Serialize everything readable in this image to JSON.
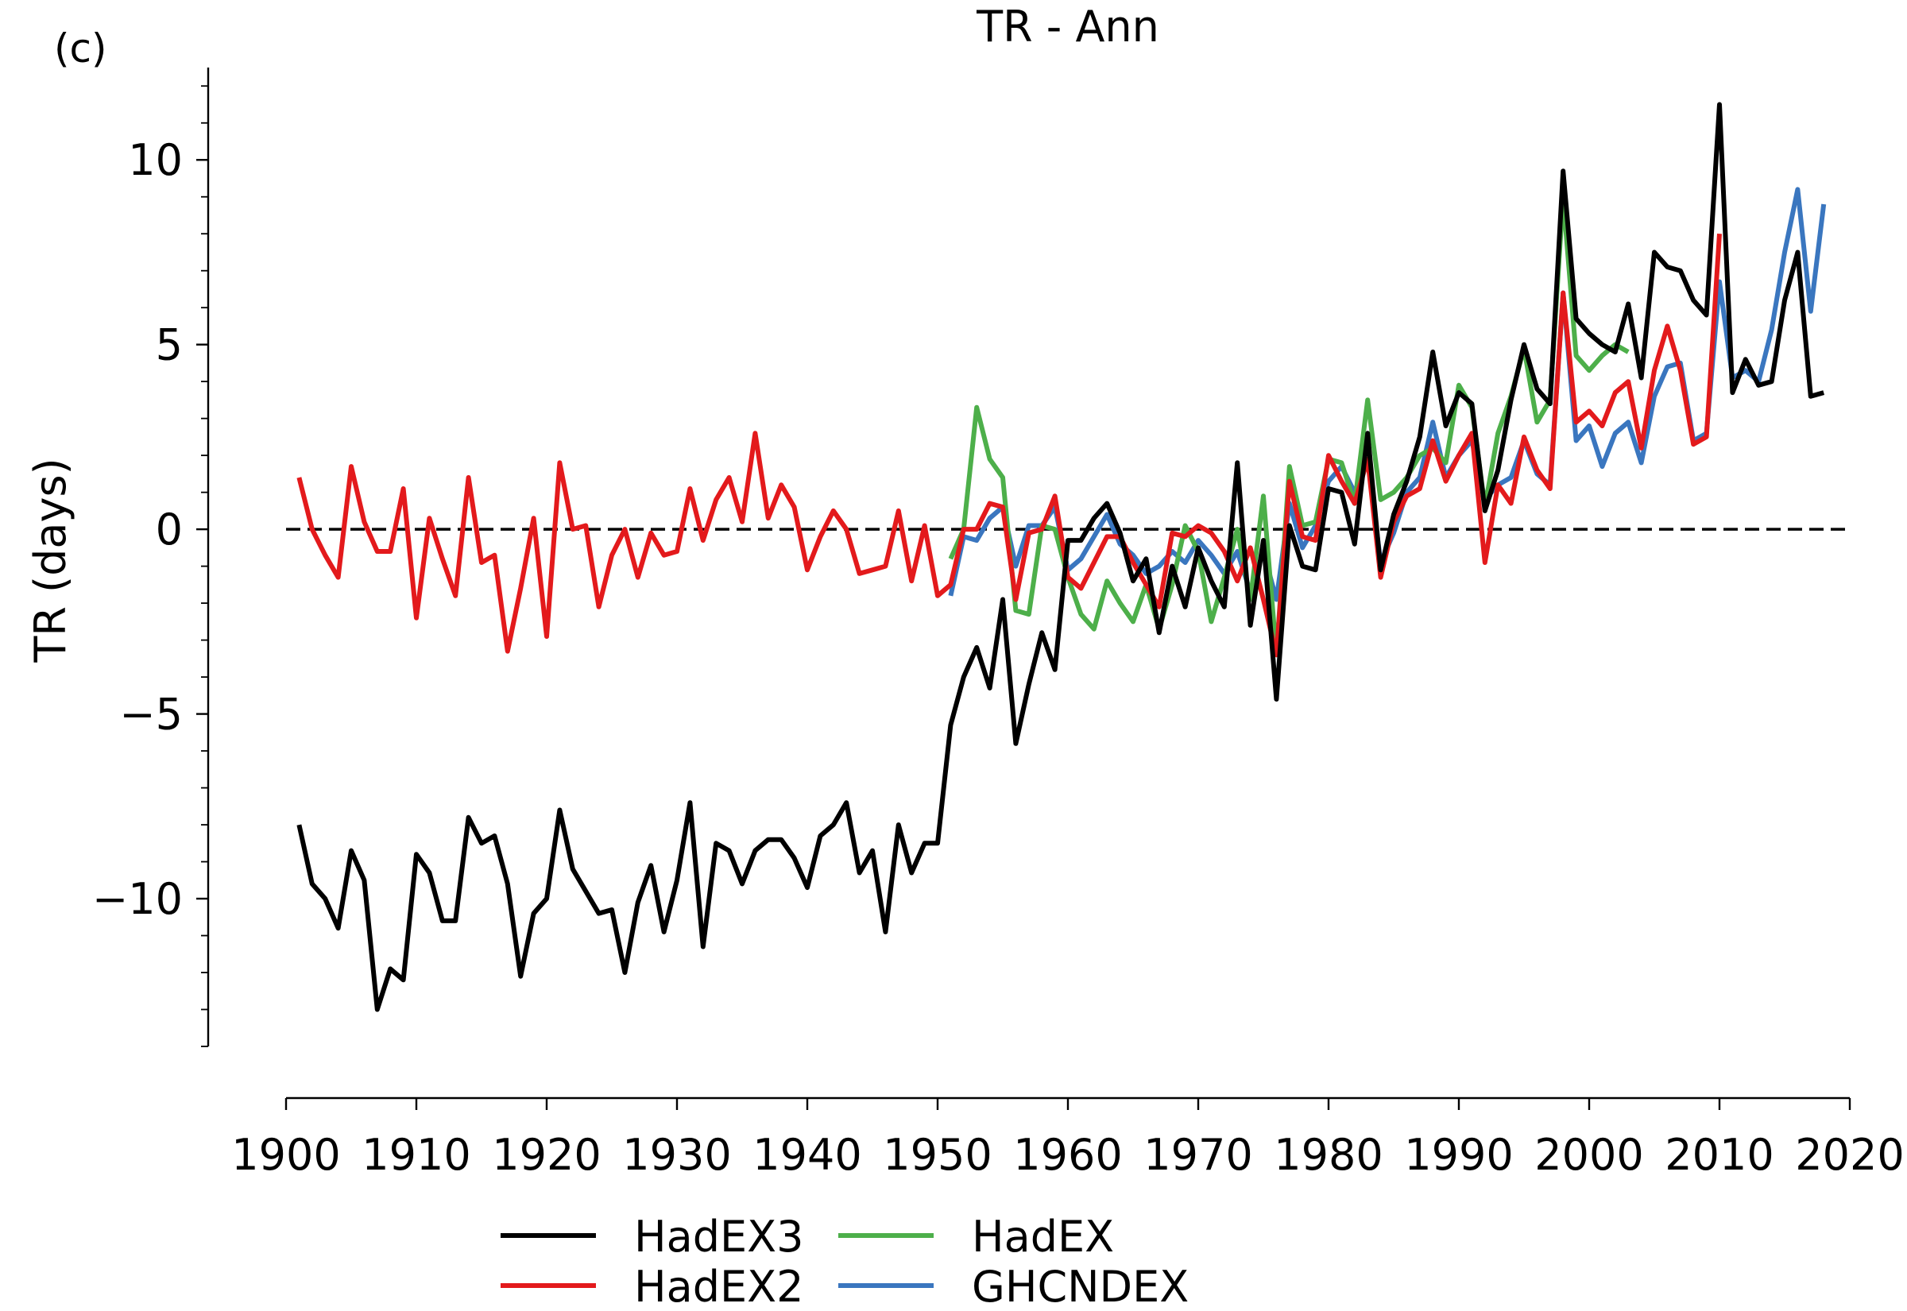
{
  "panel_label": "(c)",
  "chart_data": {
    "type": "line",
    "title": "TR - Ann",
    "xlabel": "",
    "ylabel": "TR (days)",
    "xlim": [
      1900,
      2020
    ],
    "ylim": [
      -14,
      12.5
    ],
    "x_ticks": [
      1900,
      1910,
      1920,
      1930,
      1940,
      1950,
      1960,
      1970,
      1980,
      1990,
      2000,
      2010,
      2020
    ],
    "y_ticks": [
      {
        "value": 10,
        "label": "10"
      },
      {
        "value": 5,
        "label": "5"
      },
      {
        "value": 0,
        "label": "0"
      },
      {
        "value": -5,
        "label": "−5"
      },
      {
        "value": -10,
        "label": "−10"
      }
    ],
    "y_minor_step": 1,
    "reference_line": {
      "y": 0,
      "style": "dashed",
      "color": "#000000"
    },
    "grid": false,
    "legend_position": "bottom",
    "series": [
      {
        "name": "HadEX3",
        "color": "#000000",
        "x_start": 1901,
        "values": [
          -8.0,
          -9.6,
          -10.0,
          -10.8,
          -8.7,
          -9.5,
          -13.0,
          -11.9,
          -12.2,
          -8.8,
          -9.3,
          -10.6,
          -10.6,
          -7.8,
          -8.5,
          -8.3,
          -9.6,
          -12.1,
          -10.4,
          -10.0,
          -7.6,
          -9.2,
          -9.8,
          -10.4,
          -10.3,
          -12.0,
          -10.1,
          -9.1,
          -10.9,
          -9.5,
          -7.4,
          -11.3,
          -8.5,
          -8.7,
          -9.6,
          -8.7,
          -8.4,
          -8.4,
          -8.9,
          -9.7,
          -8.3,
          -8.0,
          -7.4,
          -9.3,
          -8.7,
          -10.9,
          -8.0,
          -9.3,
          -8.5,
          -8.5,
          -5.3,
          -4.0,
          -3.2,
          -4.3,
          -1.9,
          -5.8,
          -4.2,
          -2.8,
          -3.8,
          -0.3,
          -0.3,
          0.3,
          0.7,
          -0.1,
          -1.4,
          -0.8,
          -2.8,
          -1.0,
          -2.1,
          -0.5,
          -1.4,
          -2.1,
          1.8,
          -2.6,
          -0.3,
          -4.6,
          0.1,
          -1.0,
          -1.1,
          1.1,
          1.0,
          -0.4,
          2.6,
          -1.1,
          0.4,
          1.3,
          2.5,
          4.8,
          2.8,
          3.7,
          3.4,
          0.5,
          1.6,
          3.5,
          5.0,
          3.8,
          3.4,
          9.7,
          5.7,
          5.3,
          5.0,
          4.8,
          6.1,
          4.1,
          7.5,
          7.1,
          7.0,
          6.2,
          5.8,
          11.5,
          3.7,
          4.6,
          3.9,
          4.0,
          6.2,
          7.5,
          3.6,
          3.7
        ]
      },
      {
        "name": "HadEX2",
        "color": "#e31a1c",
        "x_start": 1901,
        "values": [
          1.4,
          0.0,
          -0.7,
          -1.3,
          1.7,
          0.2,
          -0.6,
          -0.6,
          1.1,
          -2.4,
          0.3,
          -0.8,
          -1.8,
          1.4,
          -0.9,
          -0.7,
          -3.3,
          -1.6,
          0.3,
          -2.9,
          1.8,
          0.0,
          0.1,
          -2.1,
          -0.7,
          0.0,
          -1.3,
          -0.1,
          -0.7,
          -0.6,
          1.1,
          -0.3,
          0.8,
          1.4,
          0.2,
          2.6,
          0.3,
          1.2,
          0.6,
          -1.1,
          -0.2,
          0.5,
          0.0,
          -1.2,
          -1.1,
          -1.0,
          0.5,
          -1.4,
          0.1,
          -1.8,
          -1.5,
          0.0,
          0.0,
          0.7,
          0.6,
          -1.9,
          -0.1,
          0.0,
          0.9,
          -1.3,
          -1.6,
          -0.9,
          -0.2,
          -0.2,
          -0.9,
          -1.5,
          -2.1,
          -0.1,
          -0.2,
          0.1,
          -0.1,
          -0.6,
          -1.4,
          -0.5,
          -1.9,
          -3.4,
          1.3,
          -0.2,
          -0.3,
          2.0,
          1.3,
          0.7,
          1.9,
          -1.3,
          0.2,
          0.9,
          1.1,
          2.4,
          1.3,
          2.0,
          2.6,
          -0.9,
          1.2,
          0.7,
          2.5,
          1.6,
          1.1,
          6.4,
          2.9,
          3.2,
          2.8,
          3.7,
          4.0,
          2.2,
          4.3,
          5.5,
          4.3,
          2.3,
          2.5,
          8.0
        ]
      },
      {
        "name": "HadEX",
        "color": "#4daf4a",
        "x_start": 1951,
        "values": [
          -0.8,
          0.0,
          3.3,
          1.9,
          1.4,
          -2.2,
          -2.3,
          0.1,
          0.0,
          -1.3,
          -2.3,
          -2.7,
          -1.4,
          -2.0,
          -2.5,
          -1.5,
          -2.7,
          -1.5,
          0.1,
          -0.6,
          -2.5,
          -1.3,
          0.0,
          -1.9,
          0.9,
          -3.4,
          1.7,
          0.1,
          0.2,
          1.9,
          1.8,
          0.7,
          3.5,
          0.8,
          1.0,
          1.4,
          2.0,
          2.2,
          1.8,
          3.9,
          3.3,
          0.6,
          2.6,
          3.6,
          4.9,
          2.9,
          3.5,
          9.0,
          4.7,
          4.3,
          4.7,
          5.0,
          4.8
        ]
      },
      {
        "name": "GHCNDEX",
        "color": "#3a76bf",
        "x_start": 1951,
        "values": [
          -1.8,
          -0.2,
          -0.3,
          0.3,
          0.6,
          -1.0,
          0.1,
          0.1,
          0.6,
          -1.1,
          -0.8,
          -0.2,
          0.4,
          -0.4,
          -0.7,
          -1.2,
          -1.0,
          -0.6,
          -0.9,
          -0.3,
          -0.7,
          -1.2,
          -0.6,
          -1.7,
          -0.6,
          -1.9,
          0.7,
          -0.5,
          0.1,
          1.3,
          1.7,
          1.0,
          1.9,
          -0.9,
          -0.1,
          1.0,
          1.4,
          2.9,
          1.4,
          2.0,
          2.4,
          0.8,
          1.2,
          1.4,
          2.4,
          1.5,
          1.2,
          6.4,
          2.4,
          2.8,
          1.7,
          2.6,
          2.9,
          1.8,
          3.6,
          4.4,
          4.5,
          2.4,
          2.6,
          6.7,
          4.1,
          4.3,
          4.0,
          5.4,
          7.5,
          9.2,
          5.9,
          8.8
        ]
      }
    ]
  }
}
